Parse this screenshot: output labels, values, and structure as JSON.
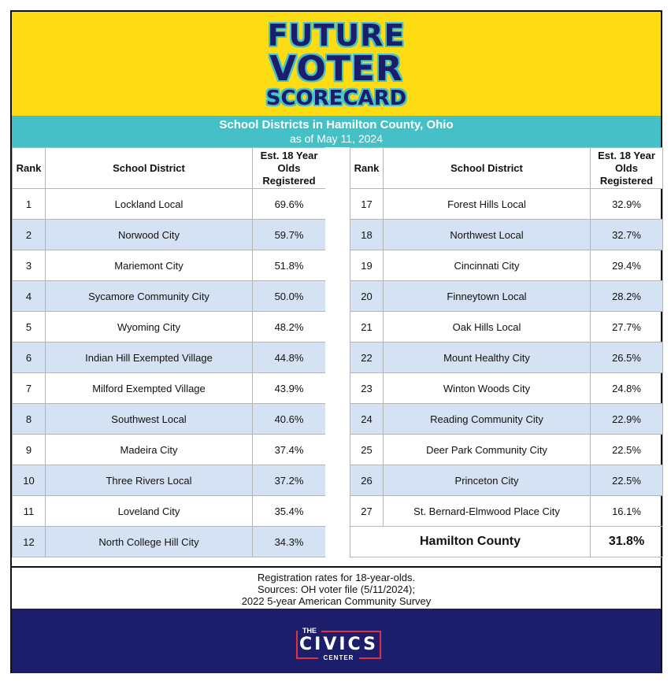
{
  "header": {
    "title_line1": "FUTURE",
    "title_line2": "VOTER",
    "title_line3": "SCORECARD",
    "subtitle": "School Districts in Hamilton County, Ohio",
    "date": "as of May 11, 2024"
  },
  "columns": {
    "rank": "Rank",
    "district": "School District",
    "rate": "Est. 18 Year Olds Registered"
  },
  "left_rows": [
    {
      "rank": "1",
      "district": "Lockland Local",
      "rate": "69.6%"
    },
    {
      "rank": "2",
      "district": "Norwood City",
      "rate": "59.7%"
    },
    {
      "rank": "3",
      "district": "Mariemont City",
      "rate": "51.8%"
    },
    {
      "rank": "4",
      "district": "Sycamore Community City",
      "rate": "50.0%"
    },
    {
      "rank": "5",
      "district": "Wyoming City",
      "rate": "48.2%"
    },
    {
      "rank": "6",
      "district": "Indian Hill Exempted Village",
      "rate": "44.8%"
    },
    {
      "rank": "7",
      "district": "Milford Exempted Village",
      "rate": "43.9%"
    },
    {
      "rank": "8",
      "district": "Southwest Local",
      "rate": "40.6%"
    },
    {
      "rank": "9",
      "district": "Madeira City",
      "rate": "37.4%"
    },
    {
      "rank": "10",
      "district": "Three Rivers Local",
      "rate": "37.2%"
    },
    {
      "rank": "11",
      "district": "Loveland City",
      "rate": "35.4%"
    },
    {
      "rank": "12",
      "district": "North College Hill City",
      "rate": "34.3%"
    }
  ],
  "right_rows": [
    {
      "rank": "17",
      "district": "Forest Hills Local",
      "rate": "32.9%"
    },
    {
      "rank": "18",
      "district": "Northwest Local",
      "rate": "32.7%"
    },
    {
      "rank": "19",
      "district": "Cincinnati City",
      "rate": "29.4%"
    },
    {
      "rank": "20",
      "district": "Finneytown Local",
      "rate": "28.2%"
    },
    {
      "rank": "21",
      "district": "Oak Hills Local",
      "rate": "27.7%"
    },
    {
      "rank": "22",
      "district": "Mount Healthy City",
      "rate": "26.5%"
    },
    {
      "rank": "23",
      "district": "Winton Woods City",
      "rate": "24.8%"
    },
    {
      "rank": "24",
      "district": "Reading Community City",
      "rate": "22.9%"
    },
    {
      "rank": "25",
      "district": "Deer Park Community City",
      "rate": "22.5%"
    },
    {
      "rank": "26",
      "district": "Princeton City",
      "rate": "22.5%"
    },
    {
      "rank": "27",
      "district": "St. Bernard-Elmwood Place City",
      "rate": "16.1%"
    }
  ],
  "total": {
    "name": "Hamilton County",
    "rate": "31.8%"
  },
  "footer": {
    "line1": "Registration rates for 18-year-olds.",
    "line2": "Sources: OH voter file (5/11/2024);",
    "line3": "2022 5-year American Community Survey"
  },
  "logo": {
    "the": "THE",
    "name": "CIVICS",
    "center": "CENTER"
  },
  "colors": {
    "banner": "#fedc13",
    "navy": "#1c1d6b",
    "teal": "#44c0c6",
    "row_alt": "#d4e2f4",
    "logo_red": "#e0313c"
  }
}
